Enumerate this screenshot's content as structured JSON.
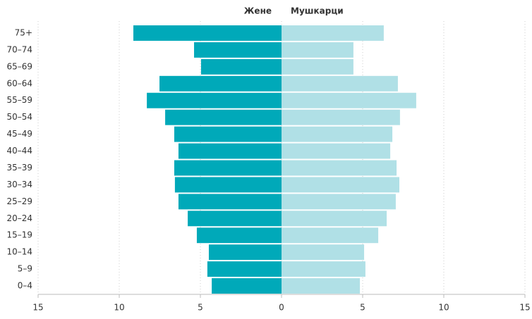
{
  "chart_data": {
    "type": "bar",
    "orientation": "horizontal",
    "stacked": "diverging",
    "categories": [
      "75+",
      "70–74",
      "65–69",
      "60–64",
      "55–59",
      "50–54",
      "45–49",
      "40–44",
      "35–39",
      "30–34",
      "25–29",
      "20–24",
      "15–19",
      "10–14",
      "5–9",
      "0–4"
    ],
    "series": [
      {
        "name": "Жене",
        "color": "#00a9b9",
        "values": [
          -9.13,
          -5.39,
          -4.96,
          -7.52,
          -8.3,
          -7.17,
          -6.61,
          -6.35,
          -6.61,
          -6.57,
          -6.35,
          -5.78,
          -5.22,
          -4.48,
          -4.57,
          -4.3
        ]
      },
      {
        "name": "Мушкарци",
        "color": "#b0e0e6",
        "values": [
          6.3,
          4.43,
          4.43,
          7.17,
          8.3,
          7.3,
          6.83,
          6.7,
          7.09,
          7.26,
          7.04,
          6.48,
          5.96,
          5.09,
          5.17,
          4.83
        ]
      }
    ],
    "xlim": [
      -15,
      15
    ],
    "xticks": [
      {
        "value": -15,
        "label": "15"
      },
      {
        "value": -10,
        "label": "10"
      },
      {
        "value": -5,
        "label": "5"
      },
      0,
      5,
      10,
      15
    ],
    "grid": true,
    "legend": "top"
  }
}
